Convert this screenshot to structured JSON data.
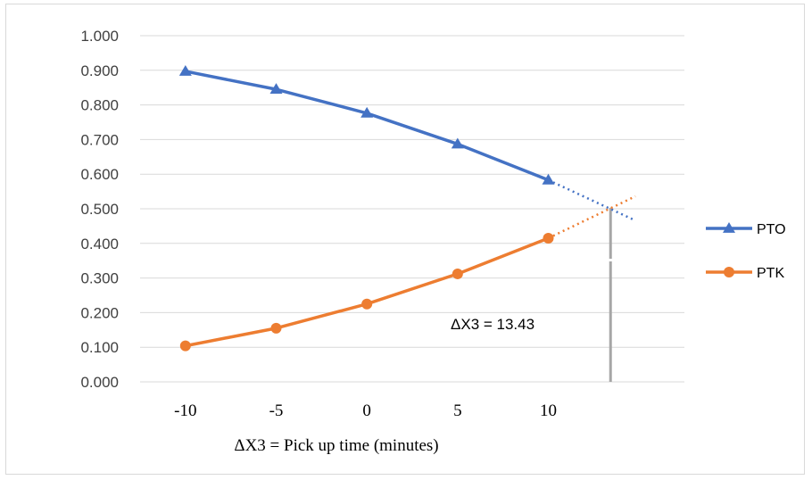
{
  "chart_data": {
    "type": "line",
    "x": [
      -10,
      -5,
      0,
      5,
      10
    ],
    "x_ticks": [
      "-10",
      "-5",
      "0",
      "5",
      "10"
    ],
    "y_ticks": [
      "0.000",
      "0.100",
      "0.200",
      "0.300",
      "0.400",
      "0.500",
      "0.600",
      "0.700",
      "0.800",
      "0.900",
      "1.000"
    ],
    "xlim": [
      -12.5,
      17.5
    ],
    "ylim": [
      0,
      1.0
    ],
    "xlabel": "ΔX3 = Pick up time (minutes)",
    "ylabel": "",
    "grid": "horizontal",
    "legend_position": "right",
    "series": [
      {
        "name": "PTO",
        "color": "#4472c4",
        "marker": "triangle",
        "values": [
          0.897,
          0.845,
          0.776,
          0.687,
          0.583
        ],
        "trend_x": [
          10,
          14.8
        ],
        "trend_values": [
          0.583,
          0.466
        ]
      },
      {
        "name": "PTK",
        "color": "#ed7d31",
        "marker": "circle",
        "values": [
          0.104,
          0.155,
          0.225,
          0.312,
          0.415
        ],
        "trend_x": [
          10,
          14.8
        ],
        "trend_values": [
          0.415,
          0.536
        ]
      }
    ],
    "annotations": [
      {
        "text": "ΔX3 = 13.43",
        "x": 13.43,
        "y": 0.503,
        "line_color": "#a6a6a6"
      }
    ]
  }
}
